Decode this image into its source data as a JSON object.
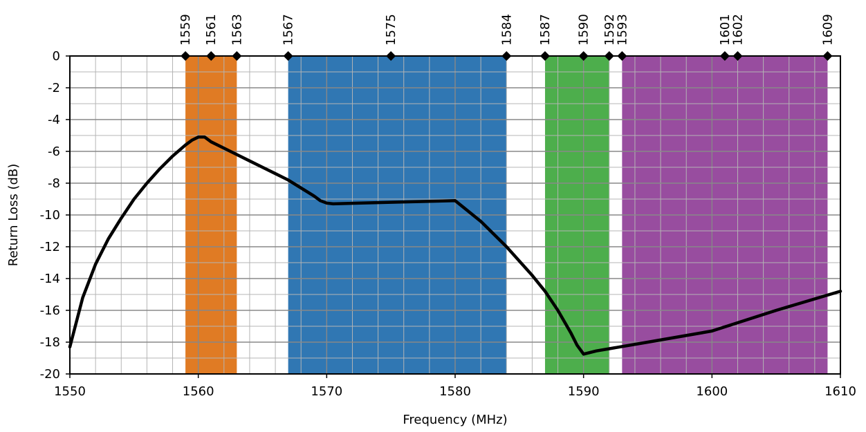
{
  "chart_data": {
    "type": "line",
    "title": "",
    "xlabel": "Frequency (MHz)",
    "ylabel": "Return Loss (dB)",
    "xlim": [
      1550,
      1610
    ],
    "ylim": [
      -20,
      0
    ],
    "x_ticks": [
      1550,
      1560,
      1570,
      1580,
      1590,
      1600,
      1610
    ],
    "x_tick_labels": [
      "1550",
      "1560",
      "1570",
      "1580",
      "1590",
      "1600",
      "1610"
    ],
    "y_ticks": [
      0,
      -2,
      -4,
      -6,
      -8,
      -10,
      -12,
      -14,
      -16,
      -18,
      -20
    ],
    "y_tick_labels": [
      "0",
      "-2",
      "-4",
      "-6",
      "-8",
      "-10",
      "-12",
      "-14",
      "-16",
      "-18",
      "-20"
    ],
    "grid": true,
    "bands": [
      {
        "start": 1559,
        "end": 1563,
        "color": "#E07B24"
      },
      {
        "start": 1567,
        "end": 1584,
        "color": "#3077B3"
      },
      {
        "start": 1587,
        "end": 1592,
        "color": "#4DAE4C"
      },
      {
        "start": 1593,
        "end": 1609,
        "color": "#984D9F"
      }
    ],
    "markers": [
      {
        "x": 1559,
        "label": "1559"
      },
      {
        "x": 1561,
        "label": "1561"
      },
      {
        "x": 1563,
        "label": "1563"
      },
      {
        "x": 1567,
        "label": "1567"
      },
      {
        "x": 1575,
        "label": "1575"
      },
      {
        "x": 1584,
        "label": "1584"
      },
      {
        "x": 1587,
        "label": "1587"
      },
      {
        "x": 1590,
        "label": "1590"
      },
      {
        "x": 1592,
        "label": "1592"
      },
      {
        "x": 1593,
        "label": "1593"
      },
      {
        "x": 1601,
        "label": "1601"
      },
      {
        "x": 1602,
        "label": "1602"
      },
      {
        "x": 1609,
        "label": "1609"
      }
    ],
    "series": [
      {
        "x": [
          1550,
          1551,
          1552,
          1553,
          1554,
          1555,
          1556,
          1557,
          1558,
          1559,
          1559.5,
          1560,
          1560.5,
          1561,
          1562,
          1563,
          1564,
          1565,
          1566,
          1567,
          1568,
          1569,
          1569.5,
          1570,
          1570.5,
          1575,
          1580,
          1582,
          1584,
          1586,
          1587,
          1588,
          1589,
          1589.5,
          1590,
          1591,
          1595,
          1600,
          1605,
          1610
        ],
        "y": [
          -18.3,
          -15.2,
          -13.1,
          -11.5,
          -10.2,
          -9.0,
          -8.0,
          -7.1,
          -6.3,
          -5.6,
          -5.3,
          -5.1,
          -5.1,
          -5.4,
          -5.8,
          -6.2,
          -6.6,
          -7.0,
          -7.4,
          -7.8,
          -8.3,
          -8.8,
          -9.1,
          -9.25,
          -9.3,
          -9.2,
          -9.1,
          -10.4,
          -12.0,
          -13.8,
          -14.8,
          -16.0,
          -17.4,
          -18.2,
          -18.75,
          -18.55,
          -18.0,
          -17.3,
          -16.0,
          -14.8
        ],
        "color": "#000000"
      }
    ]
  }
}
